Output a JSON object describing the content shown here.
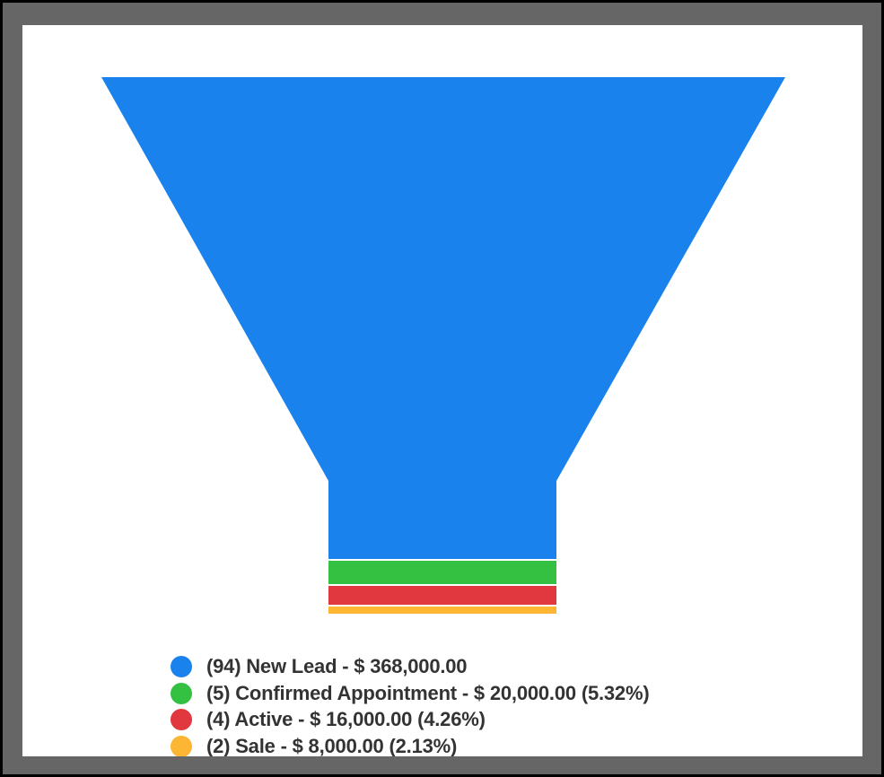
{
  "chart_data": {
    "type": "funnel",
    "title": "",
    "stages": [
      {
        "label": "New Lead",
        "count": 94,
        "value": 368000.0,
        "percent": null,
        "color": "#1a82ed",
        "legend": "(94) New Lead - $ 368,000.00"
      },
      {
        "label": "Confirmed Appointment",
        "count": 5,
        "value": 20000.0,
        "percent": 5.32,
        "color": "#34c142",
        "legend": "(5) Confirmed Appointment - $ 20,000.00 (5.32%)"
      },
      {
        "label": "Active",
        "count": 4,
        "value": 16000.0,
        "percent": 4.26,
        "color": "#e0383e",
        "legend": "(4) Active - $ 16,000.00 (4.26%)"
      },
      {
        "label": "Sale",
        "count": 2,
        "value": 8000.0,
        "percent": 2.13,
        "color": "#fdb534",
        "legend": "(2) Sale - $ 8,000.00 (2.13%)"
      }
    ],
    "legend_position": "bottom"
  }
}
